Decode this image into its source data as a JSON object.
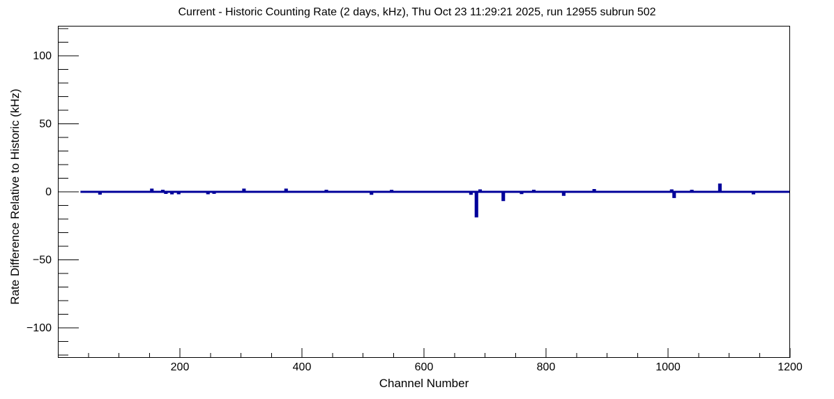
{
  "chart_data": {
    "type": "line",
    "title": "Current - Historic Counting Rate (2 days, kHz), Thu Oct 23 11:29:21 2025, run 12955 subrun 502",
    "xlabel": "Channel Number",
    "ylabel": "Rate Difference Relative to Historic (kHz)",
    "xlim": [
      0,
      1200
    ],
    "ylim": [
      -122,
      122
    ],
    "x_major_ticks": [
      200,
      400,
      600,
      800,
      1000,
      1200
    ],
    "x_minor_step": 50,
    "y_major_ticks": [
      -100,
      -50,
      0,
      50,
      100
    ],
    "y_minor_step": 10,
    "grid": false,
    "legend": false,
    "line_color": "#00009a",
    "axis_color": "#000000",
    "baseline_value": 0,
    "data_start_channel": 37,
    "data_end_channel": 1200,
    "spikes": [
      {
        "channel": 69,
        "value": -1.3
      },
      {
        "channel": 154,
        "value": 1.6
      },
      {
        "channel": 172,
        "value": 0.8
      },
      {
        "channel": 177,
        "value": -0.8
      },
      {
        "channel": 187,
        "value": -1.1
      },
      {
        "channel": 198,
        "value": -1.0
      },
      {
        "channel": 246,
        "value": -1.0
      },
      {
        "channel": 256,
        "value": -0.7
      },
      {
        "channel": 305,
        "value": 1.6
      },
      {
        "channel": 374,
        "value": 1.6
      },
      {
        "channel": 440,
        "value": 0.8
      },
      {
        "channel": 514,
        "value": -1.4
      },
      {
        "channel": 547,
        "value": 0.7
      },
      {
        "channel": 677,
        "value": -1.4
      },
      {
        "channel": 686,
        "value": -18.0
      },
      {
        "channel": 692,
        "value": 1.0
      },
      {
        "channel": 730,
        "value": -6.0
      },
      {
        "channel": 760,
        "value": -0.9
      },
      {
        "channel": 780,
        "value": 0.8
      },
      {
        "channel": 829,
        "value": -2.2
      },
      {
        "channel": 879,
        "value": 1.3
      },
      {
        "channel": 1006,
        "value": 1.0
      },
      {
        "channel": 1010,
        "value": -3.8
      },
      {
        "channel": 1039,
        "value": 0.8
      },
      {
        "channel": 1085,
        "value": 5.3
      },
      {
        "channel": 1140,
        "value": -1.1
      }
    ]
  }
}
